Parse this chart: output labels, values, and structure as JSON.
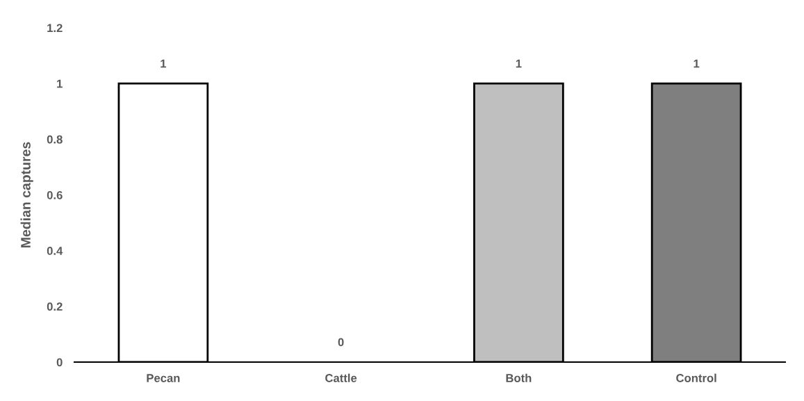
{
  "chart_data": {
    "type": "bar",
    "ylabel": "Median captures",
    "categories": [
      "Pecan",
      "Cattle",
      "Both",
      "Control"
    ],
    "values": [
      1,
      0,
      1,
      1
    ],
    "colors": [
      "#ffffff",
      "#ffffff",
      "#bfbfbf",
      "#7f7f7f"
    ],
    "ylim": [
      0,
      1.2
    ],
    "yticks": [
      0,
      0.2,
      0.4,
      0.6,
      0.8,
      1,
      1.2
    ],
    "grid": false,
    "data_labels": true
  }
}
